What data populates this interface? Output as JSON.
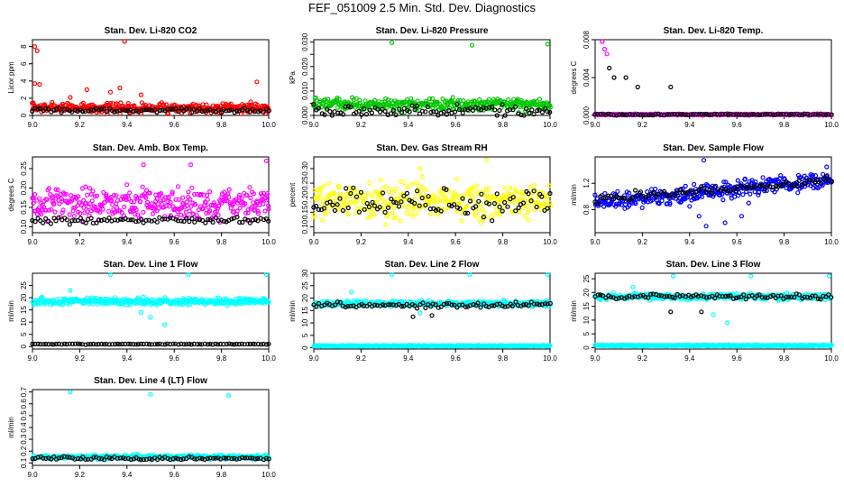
{
  "figure": {
    "title": "FEF_051009  2.5 Min. Std. Dev. Diagnostics"
  },
  "colors": {
    "red": "#ff0000",
    "green": "#00c800",
    "magenta": "#ff00ff",
    "yellow": "#ffff00",
    "blue": "#0000ff",
    "cyan": "#00ffff",
    "black": "#000000"
  },
  "chart_data": [
    {
      "type": "scatter",
      "title": "Stan. Dev. Li-820 CO2",
      "ylabel": "Licor ppm",
      "xlabel": "",
      "xlim": [
        9.0,
        10.0
      ],
      "ylim": [
        0,
        8.8
      ],
      "xticks": [
        9.0,
        9.2,
        9.4,
        9.6,
        9.8,
        10.0
      ],
      "xtick_labels": [
        "9.0",
        "9.2",
        "9.4",
        "9.6",
        "9.8",
        "10.0"
      ],
      "yticks": [
        0,
        2,
        4,
        6,
        8
      ],
      "ytick_labels": [
        "0",
        "2",
        "4",
        "6",
        "8"
      ],
      "series": [
        {
          "color": "#ff0000",
          "base": 0.9,
          "spread": 0.8,
          "spikes": [
            [
              9.01,
              8.0
            ],
            [
              9.02,
              7.5
            ],
            [
              9.01,
              3.7
            ],
            [
              9.03,
              3.6
            ],
            [
              9.39,
              8.6
            ],
            [
              9.37,
              3.2
            ],
            [
              9.46,
              2.4
            ],
            [
              9.23,
              3.0
            ],
            [
              9.33,
              2.7
            ],
            [
              9.95,
              3.9
            ],
            [
              9.16,
              2.1
            ]
          ]
        },
        {
          "color": "#000000",
          "base": 0.6,
          "spread": 0.35,
          "spikes": []
        }
      ]
    },
    {
      "type": "scatter",
      "title": "Stan. Dev. Li-820 Pressure",
      "ylabel": "kPa",
      "xlabel": "",
      "xlim": [
        9.0,
        10.0
      ],
      "ylim": [
        0,
        0.031
      ],
      "xticks": [
        9.0,
        9.2,
        9.4,
        9.6,
        9.8,
        10.0
      ],
      "xtick_labels": [
        "9.0",
        "9.2",
        "9.4",
        "9.6",
        "9.8",
        "10.0"
      ],
      "yticks": [
        0.0,
        0.005,
        0.01,
        0.015,
        0.02,
        0.025,
        0.03
      ],
      "ytick_labels": [
        "0.000",
        "",
        "0.010",
        "",
        "0.020",
        "",
        "0.030"
      ],
      "series": [
        {
          "color": "#00c800",
          "base": 0.0045,
          "spread": 0.0035,
          "spikes": [
            [
              9.33,
              0.0298
            ],
            [
              9.67,
              0.0287
            ],
            [
              9.99,
              0.0292
            ]
          ]
        },
        {
          "color": "#000000",
          "base": 0.0018,
          "spread": 0.003,
          "spikes": []
        }
      ]
    },
    {
      "type": "scatter",
      "title": "Stan. Dev. Li-820 Temp.",
      "ylabel": "degrees C",
      "xlabel": "",
      "xlim": [
        9.0,
        10.0
      ],
      "ylim": [
        0,
        0.008
      ],
      "xticks": [
        9.0,
        9.2,
        9.4,
        9.6,
        9.8,
        10.0
      ],
      "xtick_labels": [
        "9.0",
        "9.2",
        "9.4",
        "9.6",
        "9.8",
        "10.0"
      ],
      "yticks": [
        0.0,
        0.004,
        0.008
      ],
      "ytick_labels": [
        "0.000",
        "0.004",
        "0.008"
      ],
      "series": [
        {
          "color": "#ff00ff",
          "base": 0.0001,
          "spread": 0.0001,
          "spikes": [
            [
              9.03,
              0.0078
            ],
            [
              9.04,
              0.007
            ],
            [
              9.05,
              0.0065
            ]
          ]
        },
        {
          "color": "#000000",
          "base": 0.0001,
          "spread": 0.0001,
          "spikes": [
            [
              9.06,
              0.005
            ],
            [
              9.08,
              0.004
            ],
            [
              9.13,
              0.004
            ],
            [
              9.18,
              0.003
            ],
            [
              9.32,
              0.003
            ]
          ]
        }
      ]
    },
    {
      "type": "scatter",
      "title": "Stan. Dev. Amb. Box Temp.",
      "ylabel": "degrees C",
      "xlabel": "",
      "xlim": [
        9.0,
        10.0
      ],
      "ylim": [
        0.085,
        0.28
      ],
      "xticks": [
        9.0,
        9.2,
        9.4,
        9.6,
        9.8,
        10.0
      ],
      "xtick_labels": [
        "9.0",
        "9.2",
        "9.4",
        "9.6",
        "9.8",
        "10.0"
      ],
      "yticks": [
        0.1,
        0.15,
        0.2,
        0.25
      ],
      "ytick_labels": [
        "0.10",
        "0.15",
        "0.20",
        "0.25"
      ],
      "series": [
        {
          "color": "#ff00ff",
          "base": 0.16,
          "spread": 0.055,
          "spikes": [
            [
              9.99,
              0.27
            ],
            [
              9.47,
              0.26
            ],
            [
              9.67,
              0.26
            ]
          ]
        },
        {
          "color": "#000000",
          "base": 0.117,
          "spread": 0.012,
          "spikes": []
        }
      ]
    },
    {
      "type": "scatter",
      "title": "Stan. Dev. Gas Stream RH",
      "ylabel": "percent",
      "xlabel": "",
      "xlim": [
        9.0,
        10.0
      ],
      "ylim": [
        0.08,
        0.34
      ],
      "xticks": [
        9.0,
        9.2,
        9.4,
        9.6,
        9.8,
        10.0
      ],
      "xtick_labels": [
        "9.0",
        "9.2",
        "9.4",
        "9.6",
        "9.8",
        "10.0"
      ],
      "yticks": [
        0.1,
        0.15,
        0.2,
        0.25,
        0.3
      ],
      "ytick_labels": [
        "0.10",
        "0.15",
        "0.20",
        "0.25",
        "0.30"
      ],
      "series": [
        {
          "color": "#ffff00",
          "base": 0.19,
          "spread": 0.085,
          "spikes": [
            [
              9.73,
              0.33
            ],
            [
              9.45,
              0.3
            ]
          ]
        },
        {
          "color": "#000000",
          "base": 0.18,
          "spread": 0.07,
          "spikes": []
        }
      ]
    },
    {
      "type": "scatter",
      "title": "Stan. Dev. Sample Flow",
      "ylabel": "ml/min",
      "xlabel": "",
      "xlim": [
        9.0,
        10.0
      ],
      "ylim": [
        0.45,
        1.6
      ],
      "xticks": [
        9.0,
        9.2,
        9.4,
        9.6,
        9.8,
        10.0
      ],
      "xtick_labels": [
        "9.0",
        "9.2",
        "9.4",
        "9.6",
        "9.8",
        "10.0"
      ],
      "yticks": [
        0.8,
        1.2
      ],
      "ytick_labels": [
        "0.8",
        "1.2"
      ],
      "series": [
        {
          "color": "#0000ff",
          "base": 0.9,
          "spread": 0.18,
          "trend": 0.35,
          "spikes": [
            [
              9.46,
              1.55
            ],
            [
              9.44,
              0.7
            ],
            [
              9.47,
              0.55
            ],
            [
              9.55,
              0.6
            ],
            [
              9.62,
              0.7
            ],
            [
              9.65,
              0.9
            ],
            [
              9.98,
              1.45
            ],
            [
              9.4,
              0.85
            ]
          ]
        },
        {
          "color": "#000000",
          "base": 0.95,
          "spread": 0.1,
          "trend": 0.3,
          "spikes": []
        }
      ]
    },
    {
      "type": "scatter",
      "title": "Stan. Dev. Line 1 Flow",
      "ylabel": "ml/min",
      "xlabel": "",
      "xlim": [
        9.0,
        10.0
      ],
      "ylim": [
        -1,
        30
      ],
      "xticks": [
        9.0,
        9.2,
        9.4,
        9.6,
        9.8,
        10.0
      ],
      "xtick_labels": [
        "9.0",
        "9.2",
        "9.4",
        "9.6",
        "9.8",
        "10.0"
      ],
      "yticks": [
        0,
        5,
        10,
        15,
        20,
        25
      ],
      "ytick_labels": [
        "0",
        "5",
        "10",
        "15",
        "20",
        "25"
      ],
      "series": [
        {
          "color": "#00ffff",
          "base": 18.5,
          "spread": 2.0,
          "spikes": [
            [
              9.33,
              29.5
            ],
            [
              9.66,
              29.5
            ],
            [
              9.99,
              29.5
            ],
            [
              9.16,
              23
            ],
            [
              9.56,
              9
            ],
            [
              9.5,
              12
            ],
            [
              9.46,
              14
            ]
          ]
        },
        {
          "color": "#000000",
          "base": 1.0,
          "spread": 0.2,
          "spikes": []
        }
      ]
    },
    {
      "type": "scatter",
      "title": "Stan. Dev. Line 2 Flow",
      "ylabel": "ml/min",
      "xlabel": "",
      "xlim": [
        9.0,
        10.0
      ],
      "ylim": [
        -0.5,
        30
      ],
      "xticks": [
        9.0,
        9.2,
        9.4,
        9.6,
        9.8,
        10.0
      ],
      "xtick_labels": [
        "9.0",
        "9.2",
        "9.4",
        "9.6",
        "9.8",
        "10.0"
      ],
      "yticks": [
        0,
        5,
        10,
        15,
        20,
        25,
        30
      ],
      "ytick_labels": [
        "0",
        "5",
        "10",
        "15",
        "20",
        "25",
        "30"
      ],
      "series": [
        {
          "color": "#00ffff",
          "base": 17.8,
          "spread": 1.6,
          "spikes": [
            [
              9.33,
              29.5
            ],
            [
              9.66,
              29.5
            ],
            [
              9.99,
              29.5
            ],
            [
              9.16,
              22.5
            ],
            [
              9.45,
              14
            ]
          ]
        },
        {
          "color": "#000000",
          "base": 17.2,
          "spread": 1.5,
          "spikes": [
            [
              9.42,
              12.5
            ],
            [
              9.5,
              13
            ]
          ]
        },
        {
          "color": "#00ffff",
          "base": 0.8,
          "spread": 0.3,
          "spikes": []
        }
      ]
    },
    {
      "type": "scatter",
      "title": "Stan. Dev. Line 3 Flow",
      "ylabel": "ml/min",
      "xlabel": "",
      "xlim": [
        9.0,
        10.0
      ],
      "ylim": [
        -0.5,
        27
      ],
      "xticks": [
        9.0,
        9.2,
        9.4,
        9.6,
        9.8,
        10.0
      ],
      "xtick_labels": [
        "9.0",
        "9.2",
        "9.4",
        "9.6",
        "9.8",
        "10.0"
      ],
      "yticks": [
        0,
        5,
        10,
        15,
        20,
        25
      ],
      "ytick_labels": [
        "0",
        "5",
        "10",
        "15",
        "20",
        "25"
      ],
      "series": [
        {
          "color": "#00ffff",
          "base": 18.5,
          "spread": 1.5,
          "spikes": [
            [
              9.33,
              26
            ],
            [
              9.66,
              26
            ],
            [
              9.99,
              26
            ],
            [
              9.16,
              22
            ],
            [
              9.56,
              9
            ],
            [
              9.5,
              12
            ]
          ]
        },
        {
          "color": "#000000",
          "base": 18.6,
          "spread": 1.3,
          "spikes": [
            [
              9.32,
              13
            ],
            [
              9.45,
              13
            ]
          ]
        },
        {
          "color": "#00ffff",
          "base": 0.8,
          "spread": 0.3,
          "spikes": []
        }
      ]
    },
    {
      "type": "scatter",
      "title": "Stan. Dev. Line 4 (LT) Flow",
      "ylabel": "ml/min",
      "xlabel": "",
      "xlim": [
        9.0,
        10.0
      ],
      "ylim": [
        0.08,
        0.72
      ],
      "xticks": [
        9.0,
        9.2,
        9.4,
        9.6,
        9.8,
        10.0
      ],
      "xtick_labels": [
        "9.0",
        "9.2",
        "9.4",
        "9.6",
        "9.8",
        "10.0"
      ],
      "yticks": [
        0.1,
        0.2,
        0.3,
        0.4,
        0.5,
        0.6,
        0.7
      ],
      "ytick_labels": [
        "0.1",
        "0.2",
        "0.3",
        "0.4",
        "0.5",
        "0.6",
        "0.7"
      ],
      "series": [
        {
          "color": "#00ffff",
          "base": 0.15,
          "spread": 0.025,
          "spikes": [
            [
              9.16,
              0.7
            ],
            [
              9.5,
              0.68
            ],
            [
              9.83,
              0.67
            ]
          ]
        },
        {
          "color": "#000000",
          "base": 0.14,
          "spread": 0.02,
          "spikes": []
        }
      ]
    }
  ]
}
